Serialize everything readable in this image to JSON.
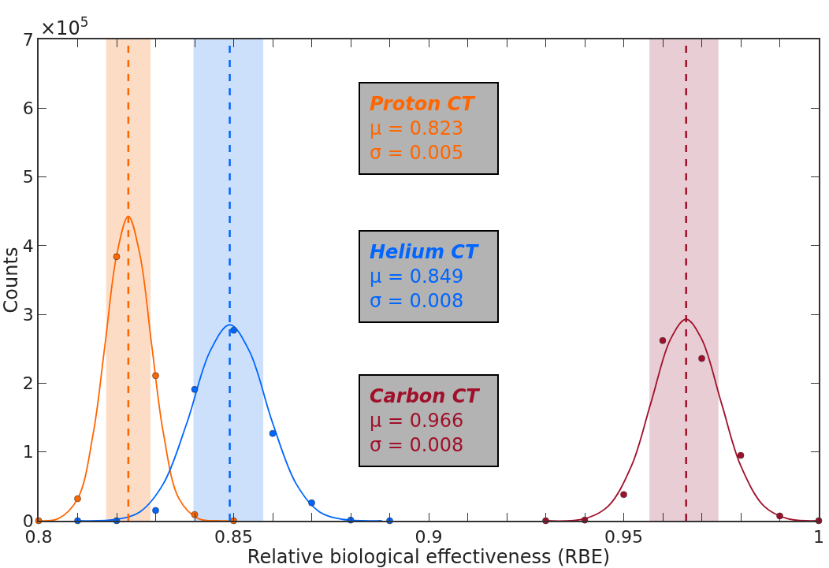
{
  "chart_data": {
    "type": "scatter",
    "xlabel": "Relative biological effectiveness (RBE)",
    "ylabel": "Counts",
    "xlim": [
      0.8,
      1.0
    ],
    "ylim": [
      0,
      7
    ],
    "xticks": [
      0.8,
      {
        "value": 0.81,
        "label": null
      },
      {
        "value": 0.82,
        "label": null
      },
      {
        "value": 0.83,
        "label": null
      },
      {
        "value": 0.84,
        "label": null
      },
      0.85,
      {
        "value": 0.86,
        "label": null
      },
      {
        "value": 0.87,
        "label": null
      },
      {
        "value": 0.88,
        "label": null
      },
      {
        "value": 0.89,
        "label": null
      },
      0.9,
      {
        "value": 0.91,
        "label": null
      },
      {
        "value": 0.92,
        "label": null
      },
      {
        "value": 0.93,
        "label": null
      },
      {
        "value": 0.94,
        "label": null
      },
      0.95,
      {
        "value": 0.96,
        "label": null
      },
      {
        "value": 0.97,
        "label": null
      },
      {
        "value": 0.98,
        "label": null
      },
      {
        "value": 0.99,
        "label": null
      },
      1
    ],
    "yticks": [
      0,
      1,
      2,
      3,
      4,
      5,
      6,
      7
    ],
    "grid": false,
    "series": [
      {
        "marker": "circle",
        "color": "#ff6600",
        "x": [
          0.8,
          0.81,
          0.82,
          0.83,
          0.84,
          0.85
        ],
        "values": [
          0,
          0.32,
          3.84,
          2.11,
          0.09,
          0
        ]
      },
      {
        "marker": "circle",
        "color": "#0066ff",
        "x": [
          0.81,
          0.82,
          0.83,
          0.84,
          0.85,
          0.86,
          0.87,
          0.88,
          0.89
        ],
        "values": [
          0,
          0,
          0.15,
          1.91,
          2.77,
          1.27,
          0.26,
          0.01,
          0
        ]
      },
      {
        "marker": "circle",
        "color": "#a0102a",
        "x": [
          0.93,
          0.94,
          0.95,
          0.96,
          0.97,
          0.98,
          0.99,
          1.0
        ],
        "values": [
          0,
          0.01,
          0.38,
          2.62,
          2.36,
          0.95,
          0.07,
          0
        ]
      },
      {
        "type": "line",
        "color": "#ff6600",
        "x": [
          0.8,
          0.805,
          0.81,
          0.814,
          0.817,
          0.82,
          0.823,
          0.826,
          0.829,
          0.832,
          0.836,
          0.841,
          0.846,
          0.85
        ],
        "values": [
          0.0,
          0.03,
          0.32,
          1.27,
          2.55,
          3.86,
          4.43,
          3.86,
          2.55,
          1.27,
          0.32,
          0.03,
          0.0,
          0.0
        ]
      },
      {
        "type": "line",
        "color": "#0066ff",
        "x": [
          0.81,
          0.82,
          0.826,
          0.832,
          0.838,
          0.844,
          0.849,
          0.854,
          0.86,
          0.866,
          0.872,
          0.878,
          0.888
        ],
        "values": [
          0.0,
          0.02,
          0.13,
          0.54,
          1.42,
          2.47,
          2.85,
          2.47,
          1.42,
          0.54,
          0.13,
          0.02,
          0.0
        ]
      },
      {
        "type": "line",
        "color": "#a0102a",
        "x": [
          0.93,
          0.94,
          0.946,
          0.952,
          0.957,
          0.962,
          0.966,
          0.97,
          0.975,
          0.98,
          0.986,
          0.992,
          1.0
        ],
        "values": [
          0.0,
          0.03,
          0.21,
          0.8,
          1.72,
          2.64,
          2.93,
          2.64,
          1.72,
          0.8,
          0.21,
          0.03,
          0.0
        ]
      }
    ],
    "ref_lines": [
      {
        "axis": "x",
        "value": 0.823,
        "color": "#ff6600",
        "line_style": "dashed"
      },
      {
        "axis": "x",
        "value": 0.849,
        "color": "#0066ff",
        "line_style": "dashed"
      },
      {
        "axis": "x",
        "value": 0.966,
        "color": "#a0102a",
        "line_style": "dashed"
      }
    ],
    "bands": [
      {
        "axis": "x",
        "from": 0.8173,
        "to": 0.8287,
        "color": "#fddcc6"
      },
      {
        "axis": "x",
        "from": 0.8397,
        "to": 0.8576,
        "color": "#cce0fb"
      },
      {
        "axis": "x",
        "from": 0.9566,
        "to": 0.9743,
        "color": "#e8cdd4"
      }
    ],
    "annotations": [
      "Proton CT\nμ = 0.823\nσ = 0.005",
      "Helium CT\nμ = 0.849\nσ = 0.008",
      "Carbon CT\nμ = 0.966\nσ = 0.008",
      "×10$^{5}$"
    ]
  }
}
